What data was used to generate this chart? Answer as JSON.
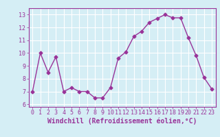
{
  "x": [
    0,
    1,
    2,
    3,
    4,
    5,
    6,
    7,
    8,
    9,
    10,
    11,
    12,
    13,
    14,
    15,
    16,
    17,
    18,
    19,
    20,
    21,
    22,
    23
  ],
  "y": [
    7.0,
    10.0,
    8.5,
    9.7,
    7.0,
    7.3,
    7.0,
    7.0,
    6.5,
    6.5,
    7.3,
    9.6,
    10.1,
    11.3,
    11.7,
    12.4,
    12.7,
    13.0,
    12.75,
    12.75,
    11.2,
    9.8,
    8.1,
    7.2
  ],
  "line_color": "#993399",
  "marker": "D",
  "markersize": 2.5,
  "linewidth": 1.0,
  "xlabel": "Windchill (Refroidissement éolien,°C)",
  "xlim": [
    -0.5,
    23.5
  ],
  "ylim": [
    5.8,
    13.5
  ],
  "yticks": [
    6,
    7,
    8,
    9,
    10,
    11,
    12,
    13
  ],
  "xticks": [
    0,
    1,
    2,
    3,
    4,
    5,
    6,
    7,
    8,
    9,
    10,
    11,
    12,
    13,
    14,
    15,
    16,
    17,
    18,
    19,
    20,
    21,
    22,
    23
  ],
  "background_color": "#d5eef5",
  "grid_color": "#ffffff",
  "tick_color": "#993399",
  "label_color": "#993399",
  "tick_fontsize": 6,
  "xlabel_fontsize": 7
}
